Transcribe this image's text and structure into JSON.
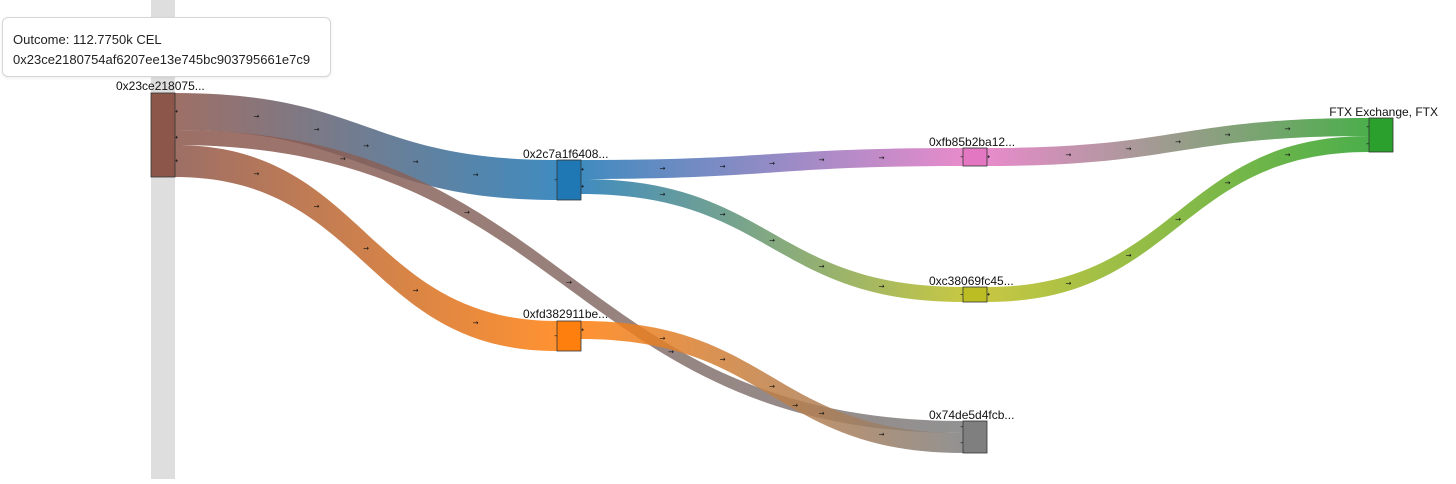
{
  "tooltip": {
    "line1": "Outcome: 112.7750k CEL",
    "line2": "0x23ce2180754af6207ee13e745bc903795661e7c9"
  },
  "nodes": [
    {
      "id": "n0",
      "label": "0x23ce218075...",
      "color": "#8c564b"
    },
    {
      "id": "n1",
      "label": "0x2c7a1f6408...",
      "color": "#1f77b4"
    },
    {
      "id": "n2",
      "label": "0xfd382911be...",
      "color": "#ff7f0e"
    },
    {
      "id": "n3",
      "label": "0xfb85b2ba12...",
      "color": "#e377c2"
    },
    {
      "id": "n4",
      "label": "0xc38069fc45...",
      "color": "#bcbd22"
    },
    {
      "id": "n5",
      "label": "0x74de5d4fcb...",
      "color": "#7f7f7f"
    },
    {
      "id": "n6",
      "label": "FTX Exchange, FTX",
      "color": "#2ca02c"
    }
  ],
  "links": [
    {
      "source": "n0",
      "target": "n1"
    },
    {
      "source": "n0",
      "target": "n5"
    },
    {
      "source": "n0",
      "target": "n2"
    },
    {
      "source": "n1",
      "target": "n3"
    },
    {
      "source": "n1",
      "target": "n4"
    },
    {
      "source": "n2",
      "target": "n5"
    },
    {
      "source": "n3",
      "target": "n6"
    },
    {
      "source": "n4",
      "target": "n6"
    }
  ]
}
